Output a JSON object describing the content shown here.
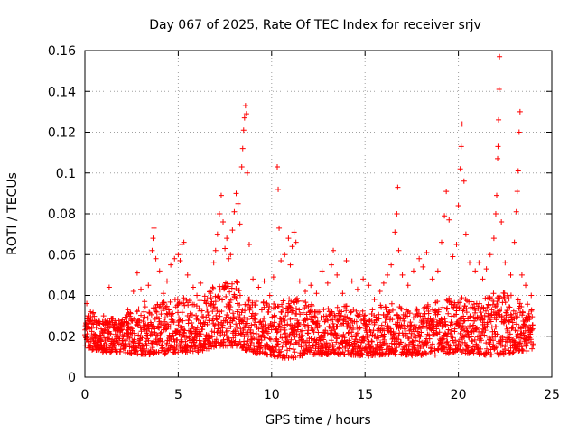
{
  "chart_data": {
    "type": "scatter",
    "title": "Day 067 of 2025, Rate Of TEC Index for receiver srjv",
    "xlabel": "GPS time / hours",
    "ylabel": "ROTI / TECUs",
    "xlim": [
      0,
      25
    ],
    "ylim": [
      0,
      0.16
    ],
    "x_ticks": [
      0,
      5,
      10,
      15,
      20,
      25
    ],
    "y_ticks": [
      0,
      0.02,
      0.04,
      0.06,
      0.08,
      0.1,
      0.12,
      0.14,
      0.16
    ],
    "x_tick_labels": [
      "0",
      "5",
      "10",
      "15",
      "20",
      "25"
    ],
    "y_tick_labels": [
      "0",
      "0.02",
      "0.04",
      "0.06",
      "0.08",
      "0.1",
      "0.12",
      "0.14",
      "0.16"
    ],
    "grid": true,
    "marker": "+",
    "color": "#ff0000",
    "series": [
      {
        "name": "ROTI",
        "points": [
          [
            0.1,
            0.036
          ],
          [
            0.3,
            0.032
          ],
          [
            0.6,
            0.027
          ],
          [
            1.0,
            0.03
          ],
          [
            1.3,
            0.044
          ],
          [
            1.6,
            0.024
          ],
          [
            2.0,
            0.028
          ],
          [
            2.3,
            0.033
          ],
          [
            2.6,
            0.042
          ],
          [
            2.8,
            0.051
          ],
          [
            3.0,
            0.043
          ],
          [
            3.2,
            0.037
          ],
          [
            3.4,
            0.045
          ],
          [
            3.6,
            0.062
          ],
          [
            3.65,
            0.068
          ],
          [
            3.7,
            0.073
          ],
          [
            3.8,
            0.058
          ],
          [
            4.0,
            0.052
          ],
          [
            4.2,
            0.041
          ],
          [
            4.4,
            0.047
          ],
          [
            4.6,
            0.055
          ],
          [
            4.8,
            0.058
          ],
          [
            5.0,
            0.06
          ],
          [
            5.1,
            0.057
          ],
          [
            5.2,
            0.065
          ],
          [
            5.3,
            0.066
          ],
          [
            5.5,
            0.05
          ],
          [
            5.8,
            0.044
          ],
          [
            6.0,
            0.04
          ],
          [
            6.2,
            0.046
          ],
          [
            6.5,
            0.036
          ],
          [
            6.7,
            0.042
          ],
          [
            6.9,
            0.056
          ],
          [
            7.0,
            0.062
          ],
          [
            7.1,
            0.07
          ],
          [
            7.2,
            0.08
          ],
          [
            7.3,
            0.089
          ],
          [
            7.4,
            0.076
          ],
          [
            7.5,
            0.063
          ],
          [
            7.6,
            0.068
          ],
          [
            7.7,
            0.058
          ],
          [
            7.8,
            0.06
          ],
          [
            7.9,
            0.072
          ],
          [
            8.0,
            0.081
          ],
          [
            8.1,
            0.09
          ],
          [
            8.2,
            0.085
          ],
          [
            8.3,
            0.075
          ],
          [
            8.4,
            0.103
          ],
          [
            8.45,
            0.112
          ],
          [
            8.5,
            0.121
          ],
          [
            8.55,
            0.127
          ],
          [
            8.6,
            0.133
          ],
          [
            8.65,
            0.129
          ],
          [
            8.7,
            0.1
          ],
          [
            8.8,
            0.065
          ],
          [
            9.0,
            0.048
          ],
          [
            9.3,
            0.044
          ],
          [
            9.6,
            0.047
          ],
          [
            9.9,
            0.04
          ],
          [
            10.1,
            0.049
          ],
          [
            10.3,
            0.103
          ],
          [
            10.35,
            0.092
          ],
          [
            10.4,
            0.073
          ],
          [
            10.5,
            0.057
          ],
          [
            10.7,
            0.06
          ],
          [
            10.9,
            0.068
          ],
          [
            11.0,
            0.055
          ],
          [
            11.1,
            0.064
          ],
          [
            11.2,
            0.071
          ],
          [
            11.3,
            0.066
          ],
          [
            11.5,
            0.047
          ],
          [
            11.8,
            0.042
          ],
          [
            12.1,
            0.045
          ],
          [
            12.4,
            0.041
          ],
          [
            12.7,
            0.052
          ],
          [
            13.0,
            0.046
          ],
          [
            13.2,
            0.055
          ],
          [
            13.3,
            0.062
          ],
          [
            13.5,
            0.05
          ],
          [
            13.8,
            0.041
          ],
          [
            14.0,
            0.057
          ],
          [
            14.3,
            0.047
          ],
          [
            14.6,
            0.043
          ],
          [
            14.9,
            0.048
          ],
          [
            15.2,
            0.045
          ],
          [
            15.5,
            0.038
          ],
          [
            15.8,
            0.042
          ],
          [
            16.0,
            0.046
          ],
          [
            16.2,
            0.05
          ],
          [
            16.4,
            0.055
          ],
          [
            16.6,
            0.071
          ],
          [
            16.7,
            0.08
          ],
          [
            16.75,
            0.093
          ],
          [
            16.8,
            0.062
          ],
          [
            17.0,
            0.05
          ],
          [
            17.3,
            0.045
          ],
          [
            17.6,
            0.052
          ],
          [
            17.9,
            0.058
          ],
          [
            18.1,
            0.054
          ],
          [
            18.3,
            0.061
          ],
          [
            18.6,
            0.048
          ],
          [
            18.9,
            0.052
          ],
          [
            19.1,
            0.066
          ],
          [
            19.25,
            0.079
          ],
          [
            19.35,
            0.091
          ],
          [
            19.5,
            0.077
          ],
          [
            19.7,
            0.059
          ],
          [
            19.9,
            0.065
          ],
          [
            20.0,
            0.084
          ],
          [
            20.1,
            0.102
          ],
          [
            20.15,
            0.113
          ],
          [
            20.2,
            0.124
          ],
          [
            20.3,
            0.096
          ],
          [
            20.4,
            0.07
          ],
          [
            20.6,
            0.056
          ],
          [
            20.9,
            0.052
          ],
          [
            21.1,
            0.056
          ],
          [
            21.3,
            0.048
          ],
          [
            21.5,
            0.053
          ],
          [
            21.7,
            0.06
          ],
          [
            21.9,
            0.068
          ],
          [
            22.0,
            0.08
          ],
          [
            22.05,
            0.089
          ],
          [
            22.1,
            0.107
          ],
          [
            22.12,
            0.113
          ],
          [
            22.15,
            0.126
          ],
          [
            22.18,
            0.141
          ],
          [
            22.2,
            0.157
          ],
          [
            22.3,
            0.076
          ],
          [
            22.5,
            0.056
          ],
          [
            22.8,
            0.05
          ],
          [
            23.0,
            0.066
          ],
          [
            23.1,
            0.081
          ],
          [
            23.15,
            0.091
          ],
          [
            23.2,
            0.101
          ],
          [
            23.25,
            0.12
          ],
          [
            23.3,
            0.13
          ],
          [
            23.4,
            0.05
          ],
          [
            23.6,
            0.045
          ],
          [
            23.9,
            0.04
          ]
        ]
      }
    ],
    "envelope": {
      "x": [
        0,
        1,
        2,
        3,
        4,
        5,
        6,
        7,
        8,
        9,
        10,
        11,
        12,
        13,
        14,
        15,
        16,
        17,
        18,
        19,
        20,
        21,
        22,
        23,
        24
      ],
      "low": [
        0.008,
        0.006,
        0.006,
        0.005,
        0.005,
        0.006,
        0.006,
        0.009,
        0.009,
        0.006,
        0.004,
        0.003,
        0.005,
        0.005,
        0.005,
        0.004,
        0.005,
        0.005,
        0.004,
        0.005,
        0.006,
        0.005,
        0.004,
        0.006,
        0.007
      ],
      "high": [
        0.03,
        0.022,
        0.024,
        0.028,
        0.03,
        0.034,
        0.03,
        0.04,
        0.042,
        0.032,
        0.03,
        0.034,
        0.03,
        0.028,
        0.029,
        0.026,
        0.03,
        0.03,
        0.028,
        0.032,
        0.034,
        0.03,
        0.036,
        0.034,
        0.028
      ]
    }
  }
}
